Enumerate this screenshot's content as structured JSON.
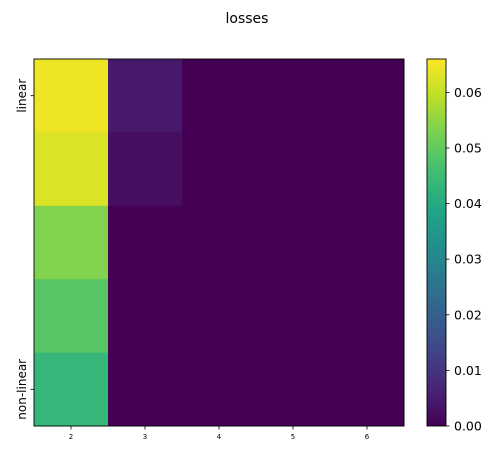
{
  "chart_data": {
    "type": "heatmap",
    "title": "losses",
    "x_categories": [
      "2",
      "3",
      "4",
      "5",
      "6"
    ],
    "y_tick_labels": [
      {
        "label": "linear",
        "row": 0.5
      },
      {
        "label": "non-linear",
        "row": 4.5
      }
    ],
    "rows": 5,
    "values": [
      [
        0.0645,
        0.0045,
        0.0,
        0.0,
        0.0
      ],
      [
        0.0625,
        0.0025,
        0.0,
        0.0,
        0.0
      ],
      [
        0.0535,
        0.0,
        0.0,
        0.0,
        0.0
      ],
      [
        0.0485,
        0.0,
        0.0,
        0.0,
        0.0
      ],
      [
        0.0435,
        0.0,
        0.0,
        0.0,
        0.0
      ]
    ],
    "colorbar": {
      "range": [
        0.0,
        0.066
      ],
      "ticks": [
        0.0,
        0.01,
        0.02,
        0.03,
        0.04,
        0.05,
        0.06
      ],
      "tick_labels": [
        "0.00",
        "0.01",
        "0.02",
        "0.03",
        "0.04",
        "0.05",
        "0.06"
      ],
      "colormap": "viridis"
    }
  }
}
